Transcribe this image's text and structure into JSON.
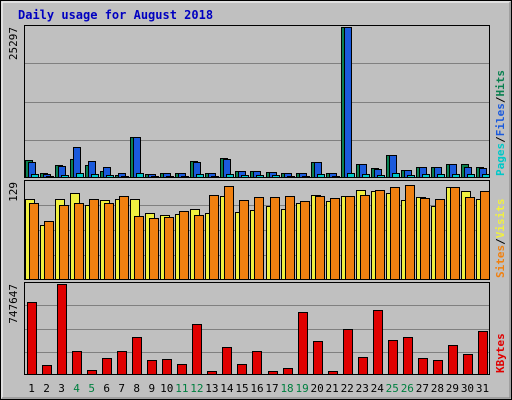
{
  "chart_data": {
    "type": "bar",
    "title": "Daily usage for August 2018",
    "categories": [
      "1",
      "2",
      "3",
      "4",
      "5",
      "6",
      "7",
      "8",
      "9",
      "10",
      "11",
      "12",
      "13",
      "14",
      "15",
      "16",
      "17",
      "18",
      "19",
      "20",
      "21",
      "22",
      "23",
      "24",
      "25",
      "26",
      "27",
      "28",
      "29",
      "30",
      "31"
    ],
    "weekend_days": [
      "4",
      "5",
      "11",
      "12",
      "18",
      "19",
      "25",
      "26"
    ],
    "grid": true,
    "colors": {
      "background": "#c0c0c0",
      "border": "#000000",
      "title": "#0000c0",
      "day_label_weekday": "#000000",
      "day_label_weekend": "#008040",
      "slash": "#000000"
    },
    "panels": [
      {
        "scale_label": "25297",
        "ymax": 25297,
        "legend": [
          {
            "label": "Pages",
            "color": "#00c8c8"
          },
          {
            "label": "Files",
            "color": "#1a5adc"
          },
          {
            "label": "Hits",
            "color": "#0a8050"
          }
        ],
        "series": [
          {
            "name": "Hits",
            "color": "#0a8050",
            "values": [
              3000,
              800,
              2100,
              3100,
              2100,
              1200,
              500,
              6900,
              700,
              800,
              800,
              2900,
              800,
              3300,
              1100,
              1200,
              1000,
              900,
              900,
              2600,
              900,
              25297,
              2400,
              1600,
              3900,
              1300,
              1900,
              1800,
              2300,
              2300,
              1800
            ]
          },
          {
            "name": "Files",
            "color": "#1a5adc",
            "values": [
              2600,
              700,
              2000,
              5200,
              2900,
              1900,
              900,
              6800,
              700,
              800,
              800,
              2700,
              800,
              3200,
              1100,
              1200,
              1000,
              900,
              900,
              2600,
              900,
              25297,
              2300,
              1500,
              3900,
              1300,
              1900,
              1800,
              2300,
              1900,
              1700
            ]
          },
          {
            "name": "Pages",
            "color": "#00c8c8",
            "values": [
              700,
              300,
              500,
              800,
              700,
              500,
              300,
              800,
              400,
              400,
              400,
              600,
              400,
              700,
              500,
              500,
              500,
              400,
              400,
              600,
              400,
              900,
              600,
              500,
              800,
              500,
              600,
              600,
              700,
              700,
              600
            ]
          }
        ]
      },
      {
        "scale_label": "129",
        "ymax": 129,
        "legend": [
          {
            "label": "Sites",
            "color": "#f08010"
          },
          {
            "label": "Visits",
            "color": "#f0f040"
          }
        ],
        "series": [
          {
            "name": "Visits",
            "color": "#f0f040",
            "values": [
              106,
              72,
              106,
              115,
              99,
              105,
              107,
              106,
              88,
              85,
              87,
              94,
              88,
              110,
              89,
              92,
              98,
              94,
              101,
              112,
              104,
              111,
              119,
              117,
              115,
              105,
              109,
              98,
              123,
              117,
              106
            ]
          },
          {
            "name": "Sites",
            "color": "#f08010",
            "values": [
              102,
              78,
              99,
              102,
              106,
              101,
              111,
              84,
              81,
              83,
              91,
              85,
              112,
              124,
              105,
              109,
              109,
              110,
              104,
              110,
              108,
              111,
              112,
              118,
              122,
              125,
              108,
              106,
              123,
              109,
              117
            ]
          }
        ]
      },
      {
        "scale_label": "747647",
        "ymax": 747647,
        "legend": [
          {
            "label": "KBytes",
            "color": "#e00000"
          }
        ],
        "series": [
          {
            "name": "KBytes",
            "color": "#e00000",
            "values": [
              600000,
              80000,
              747647,
              200000,
              40000,
              140000,
              200000,
              310000,
              120000,
              130000,
              90000,
              420000,
              30000,
              230000,
              90000,
              200000,
              30000,
              60000,
              520000,
              280000,
              30000,
              380000,
              150000,
              530000,
              290000,
              310000,
              140000,
              120000,
              250000,
              170000,
              360000
            ]
          }
        ]
      }
    ]
  }
}
